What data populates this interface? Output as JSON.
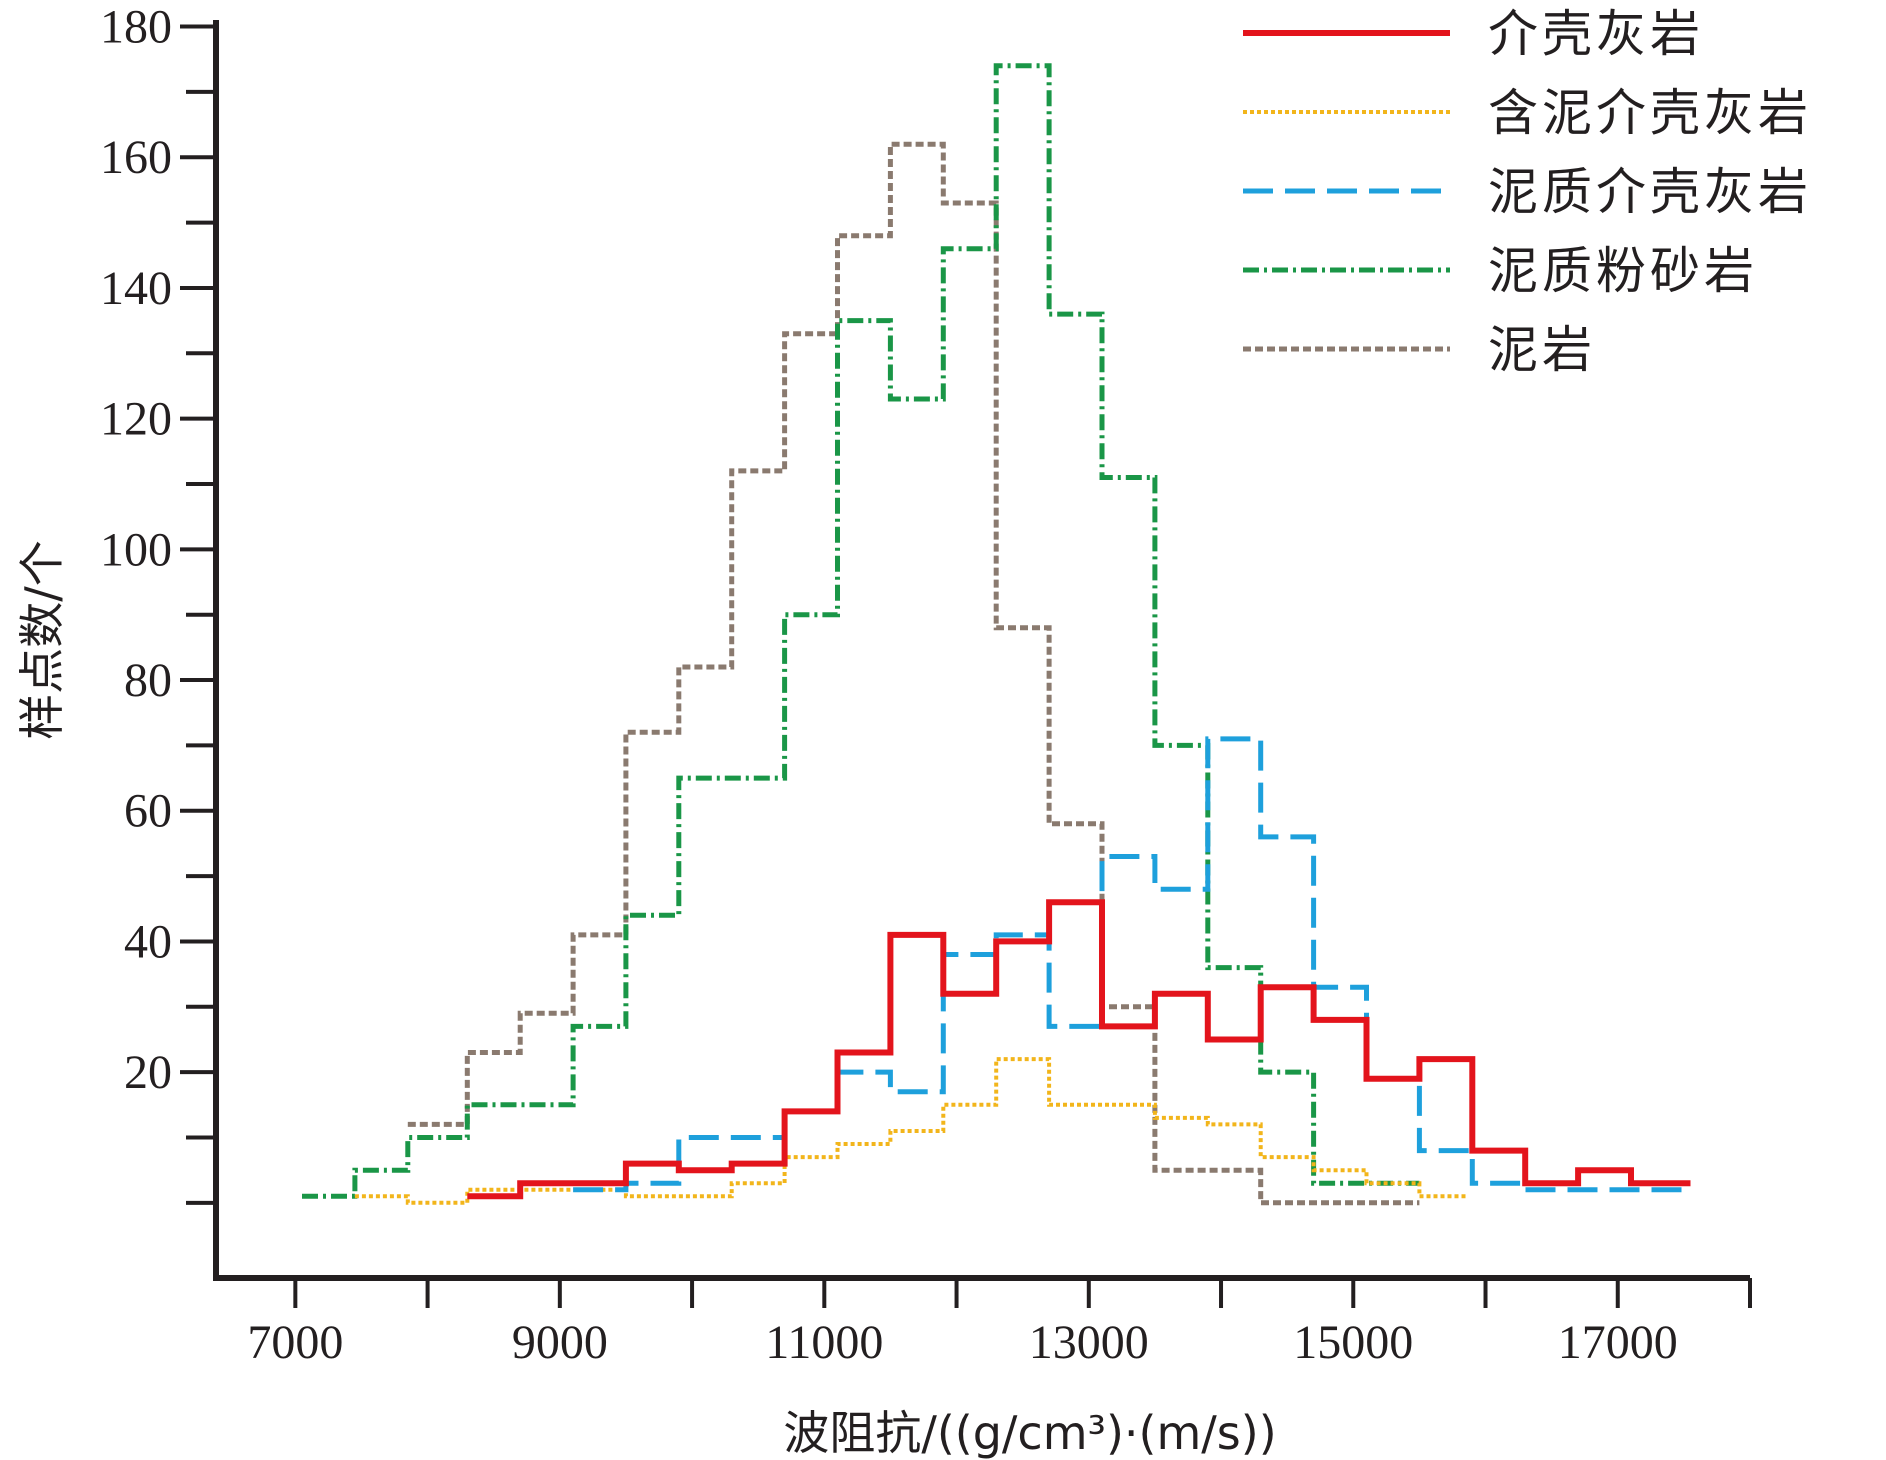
{
  "chart_data": {
    "type": "line",
    "xlabel": "波阻抗/((g/cm³)·(m/s))",
    "ylabel": "样点数/个",
    "xlim": [
      6400,
      18000
    ],
    "ylim": [
      -11.5,
      181
    ],
    "x_ticks": [
      7000,
      9000,
      11000,
      13000,
      15000,
      17000
    ],
    "x_minor_ticks": [
      7000,
      8000,
      9000,
      10000,
      11000,
      12000,
      13000,
      14000,
      15000,
      16000,
      17000,
      18000
    ],
    "y_ticks": [
      20,
      40,
      60,
      80,
      100,
      120,
      140,
      160,
      180
    ],
    "y_minor_ticks": [
      0,
      10,
      20,
      30,
      40,
      50,
      60,
      70,
      80,
      90,
      100,
      110,
      120,
      130,
      140,
      150,
      160,
      170,
      180
    ],
    "grid": false,
    "legend_position": "top-right",
    "series": [
      {
        "name": "介壳灰岩",
        "color": "#e3141c",
        "dash": "",
        "width": 6,
        "step_x": [
          8300,
          8700,
          9100,
          9500,
          9900,
          10300,
          10700,
          11100,
          11500,
          11900,
          12300,
          12700,
          13100,
          13500,
          13900,
          14300,
          14700,
          15100,
          15500,
          15900,
          16300,
          16700,
          17100,
          17550
        ],
        "values": [
          1,
          3,
          3,
          6,
          5,
          6,
          14,
          23,
          41,
          32,
          40,
          46,
          27,
          32,
          25,
          33,
          28,
          19,
          22,
          8,
          3,
          5,
          3
        ]
      },
      {
        "name": "含泥介壳灰岩",
        "color": "#f2b51b",
        "dash": "4 3",
        "width": 4,
        "step_x": [
          7450,
          7850,
          8300,
          8700,
          9100,
          9500,
          9900,
          10300,
          10700,
          11100,
          11500,
          11900,
          12300,
          12700,
          13100,
          13500,
          13900,
          14300,
          14700,
          15100,
          15500,
          15850
        ],
        "values": [
          1,
          0,
          2,
          2,
          2,
          1,
          1,
          3,
          7,
          9,
          11,
          15,
          22,
          15,
          15,
          13,
          12,
          7,
          5,
          3,
          1
        ]
      },
      {
        "name": "泥质介壳灰岩",
        "color": "#1ea0dc",
        "dash": "30 12",
        "width": 5,
        "step_x": [
          9100,
          9500,
          9900,
          10300,
          10700,
          11100,
          11500,
          11900,
          12300,
          12700,
          13100,
          13500,
          13900,
          14300,
          14700,
          15100,
          15500,
          15900,
          16300,
          16700,
          17100,
          17550
        ],
        "values": [
          2,
          3,
          10,
          10,
          14,
          20,
          17,
          38,
          41,
          27,
          53,
          48,
          71,
          56,
          33,
          19,
          8,
          3,
          2,
          2,
          2
        ]
      },
      {
        "name": "泥质粉砂岩",
        "color": "#1a9647",
        "dash": "16 5 3 5",
        "width": 5,
        "step_x": [
          7050,
          7450,
          7850,
          8300,
          8700,
          9100,
          9500,
          9900,
          10300,
          10700,
          11100,
          11500,
          11900,
          12300,
          12700,
          13100,
          13500,
          13900,
          14300,
          14700,
          15100,
          15500
        ],
        "values": [
          1,
          5,
          10,
          15,
          15,
          27,
          44,
          65,
          65,
          90,
          135,
          123,
          146,
          174,
          136,
          111,
          70,
          36,
          20,
          3,
          3
        ]
      },
      {
        "name": "泥岩",
        "color": "#8a7a6f",
        "dash": "8 4",
        "width": 5,
        "step_x": [
          7850,
          8300,
          8700,
          9100,
          9500,
          9900,
          10300,
          10700,
          11100,
          11500,
          11900,
          12300,
          12700,
          13100,
          13500,
          13900,
          14300,
          14700,
          15100,
          15500
        ],
        "values": [
          12,
          23,
          29,
          41,
          72,
          82,
          112,
          133,
          148,
          162,
          153,
          88,
          58,
          30,
          5,
          5,
          0,
          0,
          0
        ]
      }
    ]
  }
}
